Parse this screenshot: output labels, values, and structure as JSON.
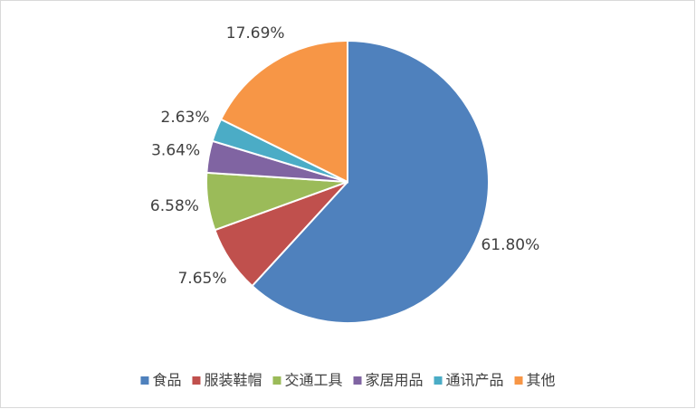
{
  "chart_data": {
    "type": "pie",
    "categories": [
      "食品",
      "服装鞋帽",
      "交通工具",
      "家居用品",
      "通讯产品",
      "其他"
    ],
    "values": [
      61.8,
      7.65,
      6.58,
      3.64,
      2.63,
      17.69
    ],
    "value_labels": [
      "61.80%",
      "7.65%",
      "6.58%",
      "3.64%",
      "2.63%",
      "17.69%"
    ],
    "colors": [
      "#4f81bd",
      "#c0504d",
      "#9bbb59",
      "#8064a2",
      "#4bacc6",
      "#f79646"
    ],
    "legend": "bottom"
  }
}
